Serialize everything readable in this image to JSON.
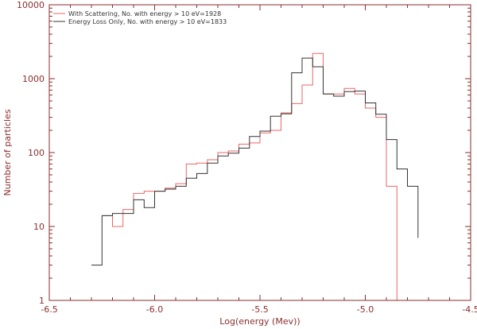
{
  "chart_data": {
    "type": "line",
    "title": "",
    "xlabel": "Log(energy (Mev))",
    "ylabel": "Number of particles",
    "xlim": [
      -6.5,
      -4.5
    ],
    "ylim": [
      1,
      10000
    ],
    "yscale": "log",
    "grid": false,
    "legend_position": "top-left",
    "axis_color": "#8b2e2e",
    "x_ticks": [
      "-6.5",
      "-6.0",
      "-5.5",
      "-5.0",
      "-4.5"
    ],
    "x_tick_values": [
      -6.5,
      -6.0,
      -5.5,
      -5.0,
      -4.5
    ],
    "y_ticks": [
      "1",
      "10",
      "100",
      "1000",
      "10000"
    ],
    "y_tick_values": [
      1,
      10,
      100,
      1000,
      10000
    ],
    "series": [
      {
        "name": "With Scattering, No. with energy > 10 eV=1928",
        "color": "#ee6666",
        "style": "step",
        "bin_edges": [
          -6.25,
          -6.2,
          -6.15,
          -6.1,
          -6.05,
          -6.0,
          -5.95,
          -5.9,
          -5.85,
          -5.8,
          -5.75,
          -5.7,
          -5.65,
          -5.6,
          -5.55,
          -5.5,
          -5.45,
          -5.4,
          -5.35,
          -5.3,
          -5.25,
          -5.2,
          -5.15,
          -5.1,
          -5.05,
          -5.0,
          -4.95,
          -4.9,
          -4.85,
          -4.8
        ],
        "values": [
          14,
          10,
          17,
          28,
          30,
          30,
          33,
          38,
          70,
          72,
          80,
          100,
          105,
          130,
          135,
          185,
          200,
          345,
          460,
          820,
          2200,
          620,
          620,
          740,
          620,
          400,
          300,
          35,
          0.5
        ]
      },
      {
        "name": "Energy Loss Only, No. with energy > 10 eV=1833",
        "color": "#333333",
        "style": "step",
        "bin_edges": [
          -6.3,
          -6.25,
          -6.2,
          -6.15,
          -6.1,
          -6.05,
          -6.0,
          -5.95,
          -5.9,
          -5.85,
          -5.8,
          -5.75,
          -5.7,
          -5.65,
          -5.6,
          -5.55,
          -5.5,
          -5.45,
          -5.4,
          -5.35,
          -5.3,
          -5.25,
          -5.2,
          -5.15,
          -5.1,
          -5.05,
          -5.0,
          -4.95,
          -4.9,
          -4.85,
          -4.8,
          -4.75
        ],
        "values": [
          3,
          14,
          15,
          15,
          23,
          18,
          30,
          32,
          35,
          45,
          52,
          72,
          90,
          98,
          115,
          165,
          195,
          310,
          335,
          1200,
          1900,
          1450,
          620,
          580,
          670,
          680,
          470,
          330,
          150,
          60,
          35,
          7
        ]
      }
    ]
  }
}
